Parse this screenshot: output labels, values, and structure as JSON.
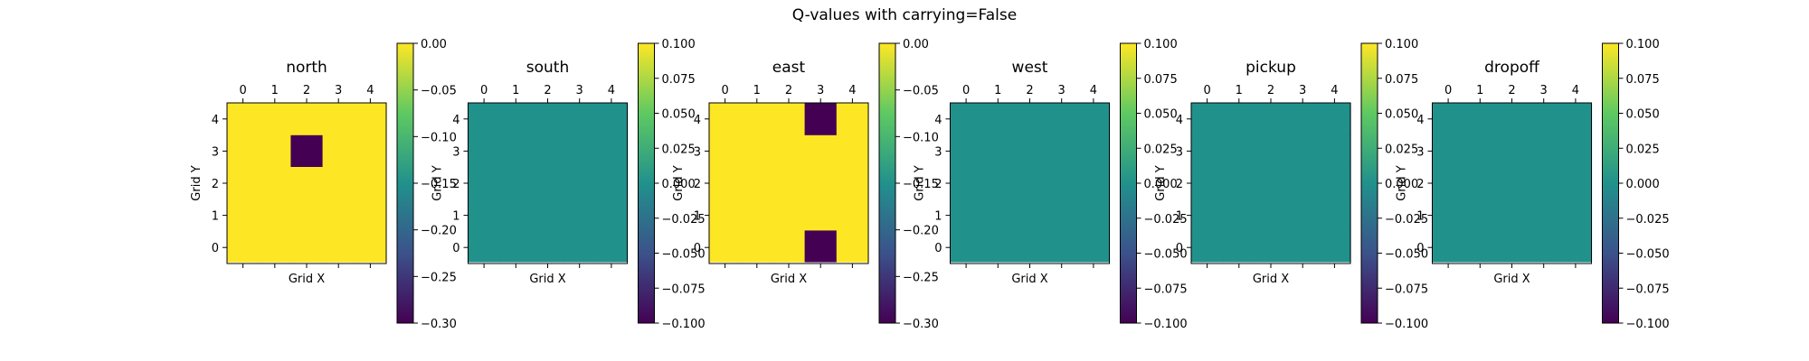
{
  "figure": {
    "title": "Q-values with carrying=False"
  },
  "colormap": {
    "name": "viridis",
    "stops": [
      "#440154",
      "#3b528b",
      "#21918c",
      "#5ec962",
      "#fde725"
    ]
  },
  "chart_data": [
    {
      "type": "heatmap",
      "title": "north",
      "xlabel": "Grid X",
      "ylabel": "Grid Y",
      "x_ticks": [
        "0",
        "1",
        "2",
        "3",
        "4"
      ],
      "y_ticks": [
        "0",
        "1",
        "2",
        "3",
        "4"
      ],
      "vmin": -0.3,
      "vmax": 0.0,
      "colorbar_ticks": [
        "0.00",
        "−0.05",
        "−0.10",
        "−0.15",
        "−0.20",
        "−0.25",
        "−0.30"
      ],
      "values": [
        [
          0,
          0,
          0,
          0,
          0
        ],
        [
          0,
          0,
          0,
          0,
          0
        ],
        [
          0,
          0,
          0,
          0,
          0
        ],
        [
          0,
          0,
          -0.3,
          0,
          0
        ],
        [
          0,
          0,
          0,
          0,
          0
        ]
      ]
    },
    {
      "type": "heatmap",
      "title": "south",
      "xlabel": "Grid X",
      "ylabel": "Grid Y",
      "x_ticks": [
        "0",
        "1",
        "2",
        "3",
        "4"
      ],
      "y_ticks": [
        "0",
        "1",
        "2",
        "3",
        "4"
      ],
      "vmin": -0.1,
      "vmax": 0.1,
      "colorbar_ticks": [
        "0.100",
        "0.075",
        "0.050",
        "0.025",
        "0.000",
        "−0.025",
        "−0.050",
        "−0.075",
        "−0.100"
      ],
      "values": [
        [
          0,
          0,
          0,
          0,
          0
        ],
        [
          0,
          0,
          0,
          0,
          0
        ],
        [
          0,
          0,
          0,
          0,
          0
        ],
        [
          0,
          0,
          0,
          0,
          0
        ],
        [
          0,
          0,
          0,
          0,
          0
        ]
      ]
    },
    {
      "type": "heatmap",
      "title": "east",
      "xlabel": "Grid X",
      "ylabel": "Grid Y",
      "x_ticks": [
        "0",
        "1",
        "2",
        "3",
        "4"
      ],
      "y_ticks": [
        "0",
        "1",
        "2",
        "3",
        "4"
      ],
      "vmin": -0.3,
      "vmax": 0.0,
      "colorbar_ticks": [
        "0.00",
        "−0.05",
        "−0.10",
        "−0.15",
        "−0.20",
        "−0.25",
        "−0.30"
      ],
      "values": [
        [
          0,
          0,
          0,
          -0.3,
          0
        ],
        [
          0,
          0,
          0,
          0,
          0
        ],
        [
          0,
          0,
          0,
          0,
          0
        ],
        [
          0,
          0,
          0,
          0,
          0
        ],
        [
          0,
          0,
          0,
          -0.3,
          0
        ]
      ]
    },
    {
      "type": "heatmap",
      "title": "west",
      "xlabel": "Grid X",
      "ylabel": "Grid Y",
      "x_ticks": [
        "0",
        "1",
        "2",
        "3",
        "4"
      ],
      "y_ticks": [
        "0",
        "1",
        "2",
        "3",
        "4"
      ],
      "vmin": -0.1,
      "vmax": 0.1,
      "colorbar_ticks": [
        "0.100",
        "0.075",
        "0.050",
        "0.025",
        "0.000",
        "−0.025",
        "−0.050",
        "−0.075",
        "−0.100"
      ],
      "values": [
        [
          0,
          0,
          0,
          0,
          0
        ],
        [
          0,
          0,
          0,
          0,
          0
        ],
        [
          0,
          0,
          0,
          0,
          0
        ],
        [
          0,
          0,
          0,
          0,
          0
        ],
        [
          0,
          0,
          0,
          0,
          0
        ]
      ]
    },
    {
      "type": "heatmap",
      "title": "pickup",
      "xlabel": "Grid X",
      "ylabel": "Grid Y",
      "x_ticks": [
        "0",
        "1",
        "2",
        "3",
        "4"
      ],
      "y_ticks": [
        "0",
        "1",
        "2",
        "3",
        "4"
      ],
      "vmin": -0.1,
      "vmax": 0.1,
      "colorbar_ticks": [
        "0.100",
        "0.075",
        "0.050",
        "0.025",
        "0.000",
        "−0.025",
        "−0.050",
        "−0.075",
        "−0.100"
      ],
      "values": [
        [
          0,
          0,
          0,
          0,
          0
        ],
        [
          0,
          0,
          0,
          0,
          0
        ],
        [
          0,
          0,
          0,
          0,
          0
        ],
        [
          0,
          0,
          0,
          0,
          0
        ],
        [
          0,
          0,
          0,
          0,
          0
        ]
      ]
    },
    {
      "type": "heatmap",
      "title": "dropoff",
      "xlabel": "Grid X",
      "ylabel": "Grid Y",
      "x_ticks": [
        "0",
        "1",
        "2",
        "3",
        "4"
      ],
      "y_ticks": [
        "0",
        "1",
        "2",
        "3",
        "4"
      ],
      "vmin": -0.1,
      "vmax": 0.1,
      "colorbar_ticks": [
        "0.100",
        "0.075",
        "0.050",
        "0.025",
        "0.000",
        "−0.025",
        "−0.050",
        "−0.075",
        "−0.100"
      ],
      "values": [
        [
          0,
          0,
          0,
          0,
          0
        ],
        [
          0,
          0,
          0,
          0,
          0
        ],
        [
          0,
          0,
          0,
          0,
          0
        ],
        [
          0,
          0,
          0,
          0,
          0
        ],
        [
          0,
          0,
          0,
          0,
          0
        ]
      ]
    }
  ]
}
